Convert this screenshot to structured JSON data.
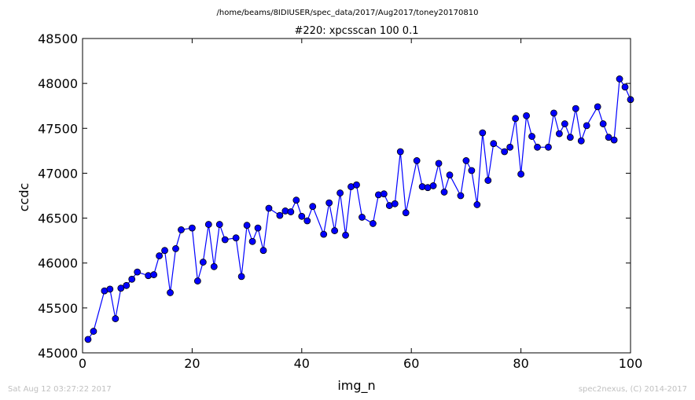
{
  "suptitle": "/home/beams/8IDIUSER/spec_data/2017/Aug2017/toney20170810",
  "footer": {
    "timestamp": "Sat Aug 12 03:27:22 2017",
    "credit": "spec2nexus, (C) 2014-2017"
  },
  "colors": {
    "line": "#0000ff",
    "marker_fill": "#0000ff",
    "marker_edge": "#000000"
  },
  "chart_data": {
    "type": "line",
    "title": "#220: xpcsscan 100 0.1",
    "xlabel": "img_n",
    "ylabel": "ccdc",
    "xlim": [
      0,
      100
    ],
    "ylim": [
      45000,
      48500
    ],
    "xticks": [
      0,
      20,
      40,
      60,
      80,
      100
    ],
    "yticks": [
      45000,
      45500,
      46000,
      46500,
      47000,
      47500,
      48000,
      48500
    ],
    "grid": false,
    "markers": "circle",
    "series": [
      {
        "x": [
          1,
          2,
          4,
          5,
          6,
          7,
          8,
          9,
          10,
          12,
          13,
          14,
          15,
          16,
          17,
          18,
          20,
          21,
          22,
          23,
          24,
          25,
          26,
          28,
          29,
          30,
          31,
          32,
          33,
          34,
          36,
          37,
          38,
          39,
          40,
          41,
          42,
          44,
          45,
          46,
          47,
          48,
          49,
          50,
          51,
          53,
          54,
          55,
          56,
          57,
          58,
          59,
          61,
          62,
          63,
          64,
          65,
          66,
          67,
          69,
          70,
          71,
          72,
          73,
          74,
          75,
          77,
          78,
          79,
          80,
          81,
          82,
          83,
          85,
          86,
          87,
          88,
          89,
          90,
          91,
          92,
          94,
          95,
          96,
          97,
          98,
          99,
          100
        ],
        "y": [
          45150,
          45240,
          45690,
          45710,
          45380,
          45720,
          45750,
          45820,
          45900,
          45860,
          45870,
          46080,
          46140,
          45670,
          46160,
          46370,
          46390,
          45800,
          46010,
          46430,
          45960,
          46430,
          46260,
          46280,
          45850,
          46420,
          46240,
          46390,
          46140,
          46610,
          46530,
          46580,
          46570,
          46700,
          46520,
          46470,
          46630,
          46320,
          46670,
          46360,
          46780,
          46310,
          46850,
          46870,
          46510,
          46440,
          46760,
          46770,
          46640,
          46660,
          47240,
          46560,
          47140,
          46850,
          46840,
          46860,
          47110,
          46790,
          46980,
          46750,
          47140,
          47030,
          46650,
          47450,
          46920,
          47330,
          47240,
          47290,
          47610,
          46990,
          47640,
          47410,
          47290,
          47290,
          47670,
          47440,
          47550,
          47400,
          47720,
          47360,
          47530,
          47740,
          47550,
          47400,
          47370,
          48050,
          47960,
          47820
        ]
      }
    ]
  }
}
